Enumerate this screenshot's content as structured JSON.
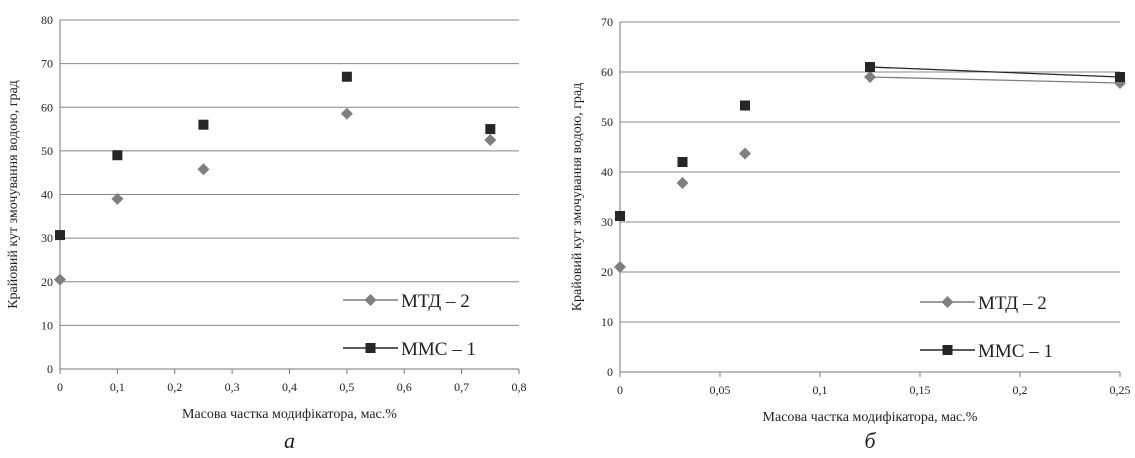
{
  "chart_data": [
    {
      "type": "scatter",
      "caption": "а",
      "xlabel": "Масова частка модифікатора, мас.%",
      "ylabel": "Крайовий кут змочування водою, град",
      "xlim": [
        0,
        0.8
      ],
      "ylim": [
        0,
        80
      ],
      "x_ticks": [
        "0",
        "0,1",
        "0,2",
        "0,3",
        "0,4",
        "0,5",
        "0,6",
        "0,7",
        "0,8"
      ],
      "y_ticks": [
        "0",
        "10",
        "20",
        "30",
        "40",
        "50",
        "60",
        "70",
        "80"
      ],
      "grid": "horizontal",
      "legend_position": "bottom-right",
      "series": [
        {
          "name": "МТД – 2",
          "marker": "diamond",
          "color": "#7f7f7f",
          "x": [
            0,
            0.1,
            0.25,
            0.5,
            0.75
          ],
          "y": [
            20.5,
            39,
            45.8,
            58.5,
            52.5
          ]
        },
        {
          "name": "ММС – 1",
          "marker": "square",
          "color": "#262626",
          "x": [
            0,
            0.1,
            0.25,
            0.5,
            0.75
          ],
          "y": [
            30.7,
            49,
            56,
            67,
            55
          ]
        }
      ]
    },
    {
      "type": "scatter",
      "caption": "б",
      "xlabel": "Масова частка модифікатора, мас.%",
      "ylabel": "Крайовий кут змочування водою, град",
      "xlim": [
        0,
        0.25
      ],
      "ylim": [
        0,
        70
      ],
      "x_ticks": [
        "0",
        "0,05",
        "0,1",
        "0,15",
        "0,2",
        "0,25"
      ],
      "y_ticks": [
        "0",
        "10",
        "20",
        "30",
        "40",
        "50",
        "60",
        "70"
      ],
      "grid": "horizontal",
      "legend_position": "bottom-right",
      "series": [
        {
          "name": "МТД – 2",
          "marker": "diamond",
          "color": "#7f7f7f",
          "x": [
            0,
            0.03125,
            0.0625,
            0.125,
            0.25
          ],
          "y": [
            21,
            37.8,
            43.7,
            59,
            57.8
          ]
        },
        {
          "name": "ММС – 1",
          "marker": "square",
          "color": "#262626",
          "x": [
            0,
            0.03125,
            0.0625,
            0.125,
            0.25
          ],
          "y": [
            31.2,
            42,
            53.3,
            61,
            59
          ]
        }
      ]
    }
  ]
}
